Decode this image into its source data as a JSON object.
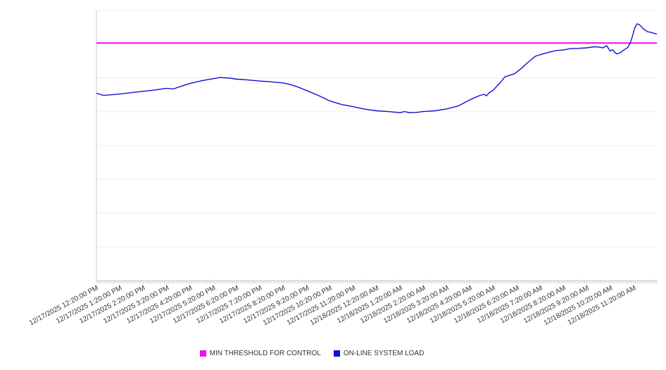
{
  "chart_data": {
    "type": "line",
    "title": "",
    "grid": true,
    "legend_position": "bottom-center",
    "x_axis": {
      "label_rotation_deg": -28,
      "minor_ticks_per_hour": 12,
      "tick_labels": [
        "12/17/2025 12:20:00 PM",
        "12/17/2025 1:20:00 PM",
        "12/17/2025 2:20:00 PM",
        "12/17/2025 3:20:00 PM",
        "12/17/2025 4:20:00 PM",
        "12/17/2025 5:20:00 PM",
        "12/17/2025 6:20:00 PM",
        "12/17/2025 7:20:00 PM",
        "12/17/2025 8:20:00 PM",
        "12/17/2025 9:20:00 PM",
        "12/17/2025 10:20:00 PM",
        "12/17/2025 11:20:00 PM",
        "12/18/2025 12:20:00 AM",
        "12/18/2025 1:20:00 AM",
        "12/18/2025 2:20:00 AM",
        "12/18/2025 3:20:00 AM",
        "12/18/2025 4:20:00 AM",
        "12/18/2025 5:20:00 AM",
        "12/18/2025 6:20:00 AM",
        "12/18/2025 7:20:00 AM",
        "12/18/2025 8:20:00 AM",
        "12/18/2025 9:20:00 AM",
        "12/18/2025 10:20:00 AM",
        "12/18/2025 11:20:00 AM"
      ]
    },
    "y_axis": {
      "tick_labels_visible": false,
      "ylim": [
        0,
        100
      ],
      "grid_divisions": 8
    },
    "series": [
      {
        "name": "MIN THRESHOLD FOR CONTROL",
        "type": "threshold",
        "color": "#ee10ee",
        "value": 88
      },
      {
        "name": "ON-LINE SYSTEM LOAD",
        "type": "line",
        "color": "#1212d4",
        "points": [
          [
            0,
            69.4
          ],
          [
            0.3,
            68.6
          ],
          [
            0.6,
            68.8
          ],
          [
            1,
            69.1
          ],
          [
            1.5,
            69.6
          ],
          [
            2,
            70.1
          ],
          [
            2.5,
            70.6
          ],
          [
            3,
            71.2
          ],
          [
            3.3,
            71.0
          ],
          [
            3.6,
            71.9
          ],
          [
            4,
            73.0
          ],
          [
            4.5,
            74.0
          ],
          [
            5,
            74.8
          ],
          [
            5.3,
            75.2
          ],
          [
            5.7,
            75.0
          ],
          [
            6,
            74.6
          ],
          [
            6.5,
            74.3
          ],
          [
            7,
            73.9
          ],
          [
            7.5,
            73.6
          ],
          [
            8,
            73.2
          ],
          [
            8.3,
            72.6
          ],
          [
            8.6,
            71.8
          ],
          [
            9,
            70.4
          ],
          [
            9.5,
            68.6
          ],
          [
            10,
            66.5
          ],
          [
            10.5,
            65.2
          ],
          [
            11,
            64.4
          ],
          [
            11.5,
            63.5
          ],
          [
            12,
            62.9
          ],
          [
            12.5,
            62.6
          ],
          [
            13,
            62.2
          ],
          [
            13.2,
            62.6
          ],
          [
            13.4,
            62.2
          ],
          [
            13.7,
            62.3
          ],
          [
            14,
            62.6
          ],
          [
            14.5,
            62.9
          ],
          [
            15,
            63.6
          ],
          [
            15.5,
            64.7
          ],
          [
            15.8,
            66.1
          ],
          [
            16.1,
            67.4
          ],
          [
            16.4,
            68.5
          ],
          [
            16.6,
            69.0
          ],
          [
            16.7,
            68.4
          ],
          [
            16.8,
            69.4
          ],
          [
            17,
            70.6
          ],
          [
            17.3,
            73.4
          ],
          [
            17.5,
            75.5
          ],
          [
            17.9,
            76.6
          ],
          [
            18.2,
            78.6
          ],
          [
            18.5,
            81.0
          ],
          [
            18.8,
            83.1
          ],
          [
            19.1,
            83.9
          ],
          [
            19.4,
            84.6
          ],
          [
            19.7,
            85.2
          ],
          [
            20,
            85.4
          ],
          [
            20.3,
            85.9
          ],
          [
            20.6,
            86.0
          ],
          [
            21,
            86.2
          ],
          [
            21.3,
            86.6
          ],
          [
            21.5,
            86.5
          ],
          [
            21.7,
            86.2
          ],
          [
            21.85,
            87.0
          ],
          [
            22.0,
            85.0
          ],
          [
            22.1,
            85.5
          ],
          [
            22.2,
            84.5
          ],
          [
            22.3,
            83.9
          ],
          [
            22.45,
            84.5
          ],
          [
            22.6,
            85.5
          ],
          [
            22.75,
            86.3
          ],
          [
            22.85,
            87.8
          ],
          [
            22.95,
            90.4
          ],
          [
            23.05,
            93.5
          ],
          [
            23.15,
            95.1
          ],
          [
            23.25,
            94.8
          ],
          [
            23.35,
            93.9
          ],
          [
            23.45,
            93.0
          ],
          [
            23.6,
            92.2
          ],
          [
            23.75,
            91.9
          ],
          [
            23.9,
            91.5
          ],
          [
            24,
            91.3
          ]
        ]
      }
    ]
  },
  "colors": {
    "background": "#ffffff",
    "grid": "#ececec",
    "axis": "#c8c8c8",
    "label_text": "#333333"
  }
}
